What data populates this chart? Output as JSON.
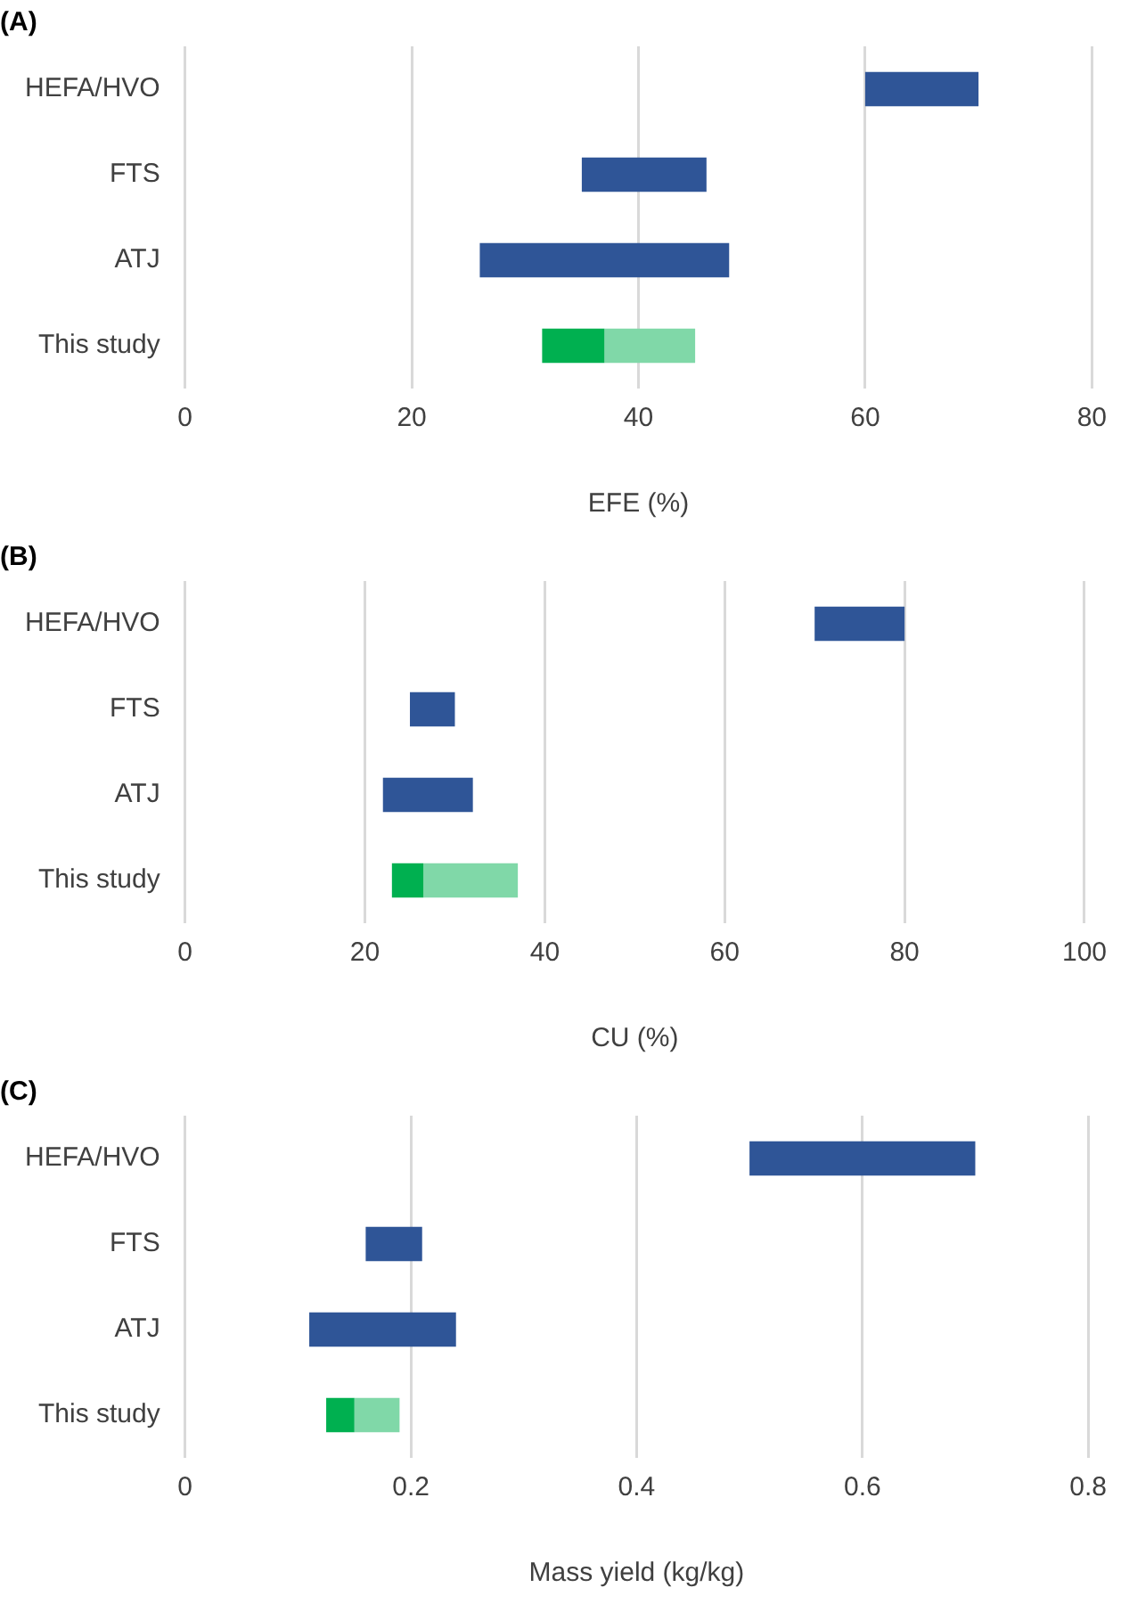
{
  "chart_data": [
    {
      "type": "bar",
      "title": "(A)",
      "orientation": "horizontal",
      "categories": [
        "HEFA/HVO",
        "FTS",
        "ATJ",
        "This study"
      ],
      "xlabel": "EFE (%)",
      "xlim": [
        0,
        80
      ],
      "xticks": [
        0,
        20,
        40,
        60,
        80
      ],
      "grid": "x",
      "legend": false,
      "series": [
        {
          "color": "#2f5597",
          "base": [
            60,
            35,
            26,
            null
          ],
          "values": [
            10,
            11,
            22,
            null
          ]
        },
        {
          "color": "#00b050",
          "base": [
            null,
            null,
            null,
            31.5
          ],
          "values": [
            null,
            null,
            null,
            5.5
          ]
        },
        {
          "color": "#80d8a8",
          "base": [
            null,
            null,
            null,
            37
          ],
          "values": [
            null,
            null,
            null,
            8
          ]
        }
      ]
    },
    {
      "type": "bar",
      "title": "(B)",
      "orientation": "horizontal",
      "categories": [
        "HEFA/HVO",
        "FTS",
        "ATJ",
        "This study"
      ],
      "xlabel": "CU (%)",
      "xlim": [
        0,
        100
      ],
      "xticks": [
        0,
        20,
        40,
        60,
        80,
        100
      ],
      "grid": "x",
      "legend": false,
      "series": [
        {
          "color": "#2f5597",
          "base": [
            70,
            25,
            22,
            null
          ],
          "values": [
            10,
            5,
            10,
            null
          ]
        },
        {
          "color": "#00b050",
          "base": [
            null,
            null,
            null,
            23
          ],
          "values": [
            null,
            null,
            null,
            3.5
          ]
        },
        {
          "color": "#80d8a8",
          "base": [
            null,
            null,
            null,
            26.5
          ],
          "values": [
            null,
            null,
            null,
            10.5
          ]
        }
      ]
    },
    {
      "type": "bar",
      "title": "(C)",
      "orientation": "horizontal",
      "categories": [
        "HEFA/HVO",
        "FTS",
        "ATJ",
        "This study"
      ],
      "xlabel": "Mass yield (kg/kg)",
      "xlim": [
        0,
        0.8
      ],
      "xticks": [
        0,
        0.2,
        0.4,
        0.6,
        0.8
      ],
      "grid": "x",
      "legend": false,
      "series": [
        {
          "color": "#2f5597",
          "base": [
            0.5,
            0.16,
            0.11,
            null
          ],
          "values": [
            0.2,
            0.05,
            0.13,
            null
          ]
        },
        {
          "color": "#00b050",
          "base": [
            null,
            null,
            null,
            0.125
          ],
          "values": [
            null,
            null,
            null,
            0.025
          ]
        },
        {
          "color": "#80d8a8",
          "base": [
            null,
            null,
            null,
            0.15
          ],
          "values": [
            null,
            null,
            null,
            0.04
          ]
        }
      ]
    }
  ]
}
